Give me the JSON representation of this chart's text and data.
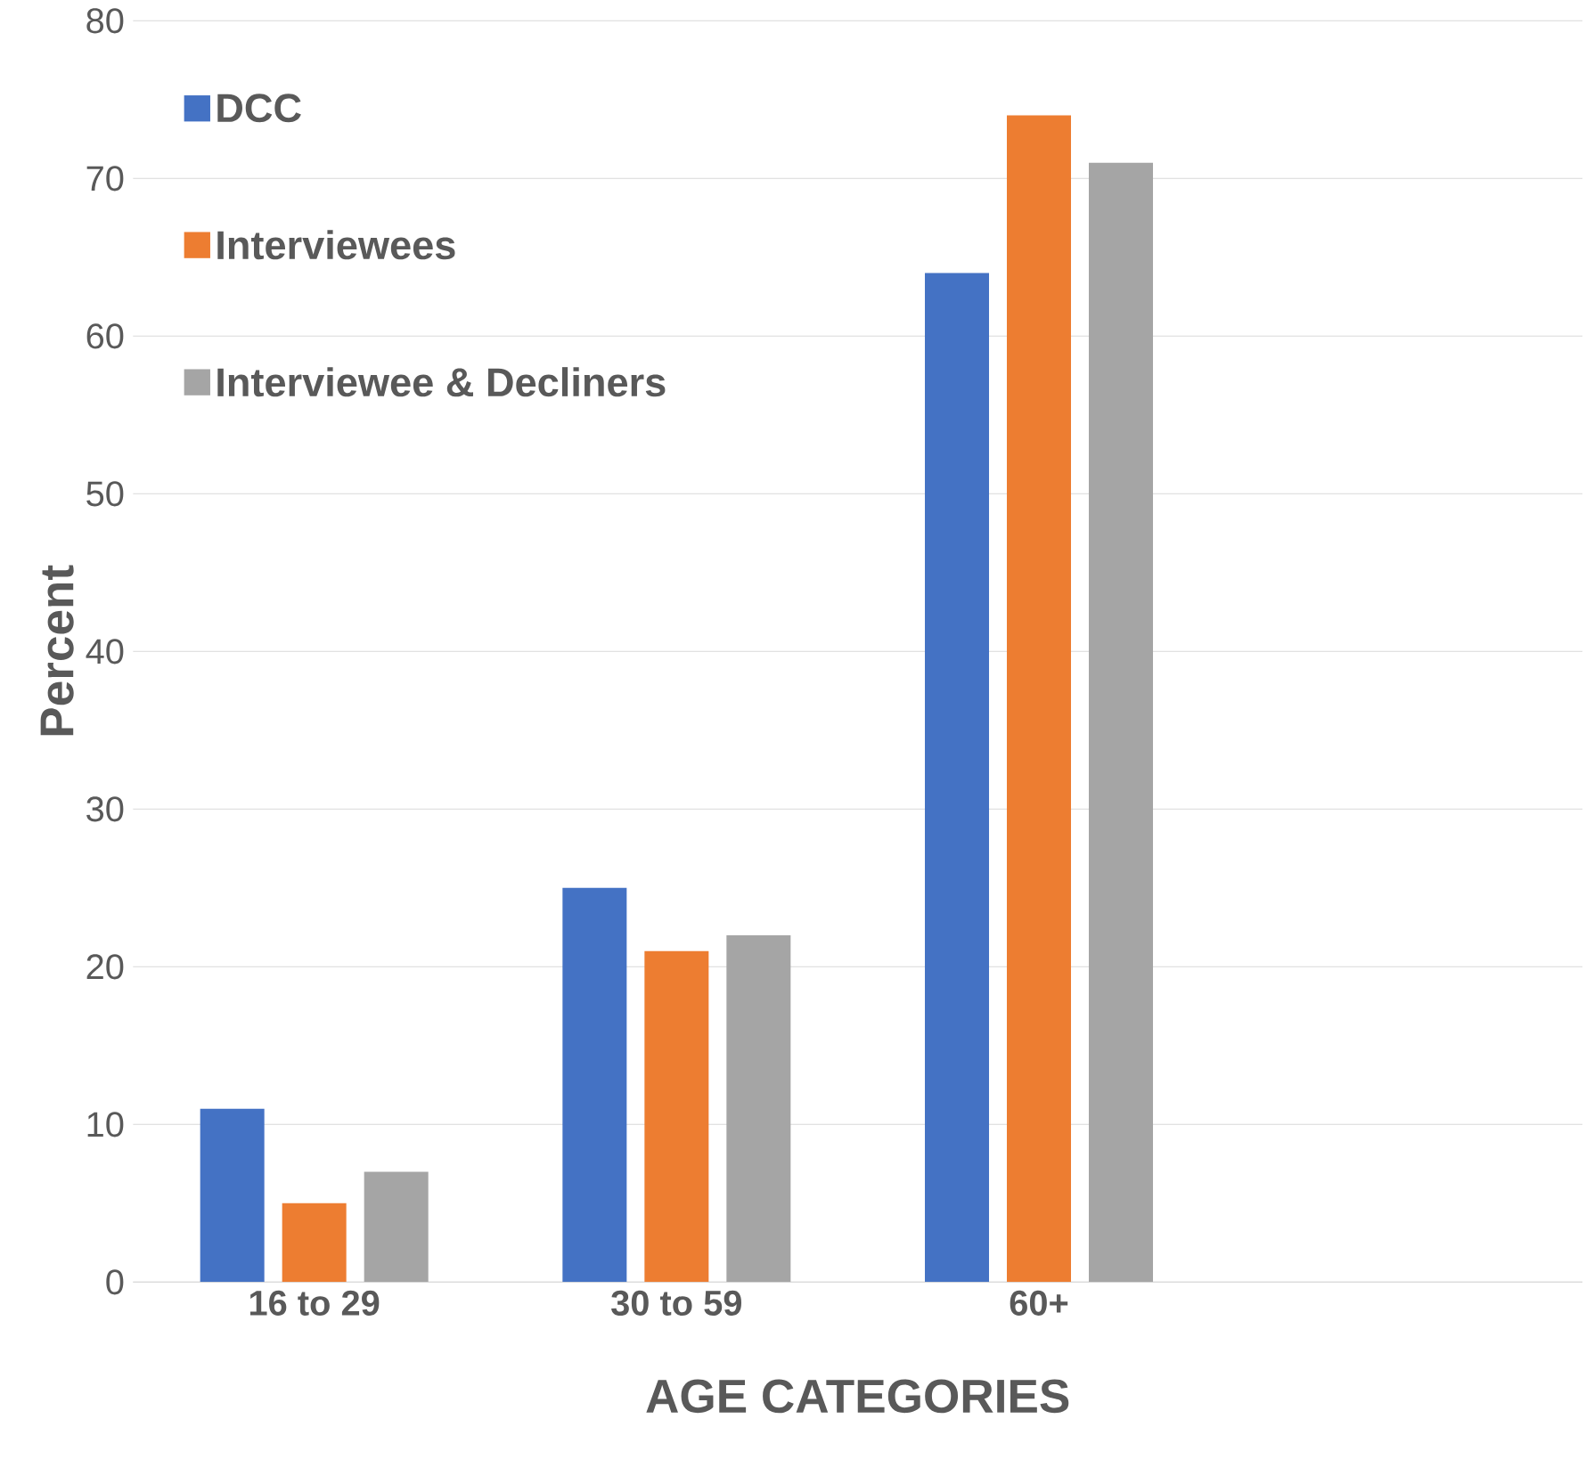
{
  "chart_data": {
    "type": "bar",
    "xlabel": "AGE CATEGORIES",
    "ylabel": "Percent",
    "categories": [
      "16 to 29",
      "30 to 59",
      "60+",
      null
    ],
    "series": [
      {
        "name": "DCC",
        "color": "#4472c4",
        "values": [
          11,
          25,
          64,
          null
        ]
      },
      {
        "name": "Interviewees",
        "color": "#ed7d31",
        "values": [
          5,
          21,
          74,
          null
        ]
      },
      {
        "name": "Interviewee & Decliners",
        "color": "#a5a5a5",
        "values": [
          7,
          22,
          71,
          null
        ]
      }
    ],
    "ylim": [
      0,
      80
    ],
    "yticks": [
      0,
      10,
      20,
      30,
      40,
      50,
      60,
      70,
      80
    ],
    "grid": "y",
    "legend": "top left"
  }
}
